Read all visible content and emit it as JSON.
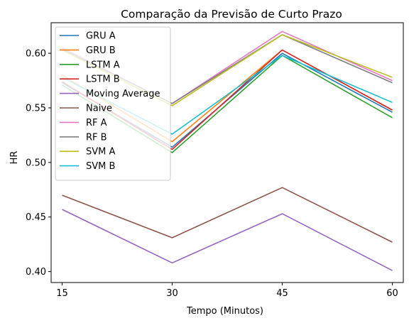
{
  "chart_data": {
    "type": "line",
    "title": "Comparação da Previsão de Curto Prazo",
    "xlabel": "Tempo (Minutos)",
    "ylabel": "HR",
    "x": [
      15,
      30,
      45,
      60
    ],
    "xticks": [
      "15",
      "30",
      "45",
      "60"
    ],
    "yticks": [
      "0.40",
      "0.45",
      "0.50",
      "0.55",
      "0.60"
    ],
    "ylim": [
      0.39,
      0.628
    ],
    "grid": false,
    "legend_position": "top-left",
    "series": [
      {
        "name": "GRU A",
        "color": "#1f77b4",
        "values": [
          0.573,
          0.514,
          0.6,
          0.546
        ]
      },
      {
        "name": "GRU B",
        "color": "#ff7f0e",
        "values": [
          0.58,
          0.519,
          0.603,
          0.548
        ]
      },
      {
        "name": "LSTM A",
        "color": "#2ca02c",
        "values": [
          0.571,
          0.509,
          0.598,
          0.541
        ]
      },
      {
        "name": "LSTM B",
        "color": "#d62728",
        "values": [
          0.574,
          0.512,
          0.603,
          0.548
        ]
      },
      {
        "name": "Moving Average",
        "color": "#9467bd",
        "values": [
          0.457,
          0.408,
          0.453,
          0.401
        ]
      },
      {
        "name": "Naive",
        "color": "#8c564b",
        "values": [
          0.47,
          0.431,
          0.477,
          0.427
        ]
      },
      {
        "name": "RF A",
        "color": "#e377c2",
        "values": [
          0.605,
          0.554,
          0.62,
          0.575
        ]
      },
      {
        "name": "RF B",
        "color": "#7f7f7f",
        "values": [
          0.604,
          0.554,
          0.617,
          0.573
        ]
      },
      {
        "name": "SVM A",
        "color": "#bcbd22",
        "values": [
          0.603,
          0.552,
          0.617,
          0.578
        ]
      },
      {
        "name": "SVM B",
        "color": "#17becf",
        "values": [
          0.578,
          0.526,
          0.598,
          0.555
        ]
      }
    ]
  }
}
